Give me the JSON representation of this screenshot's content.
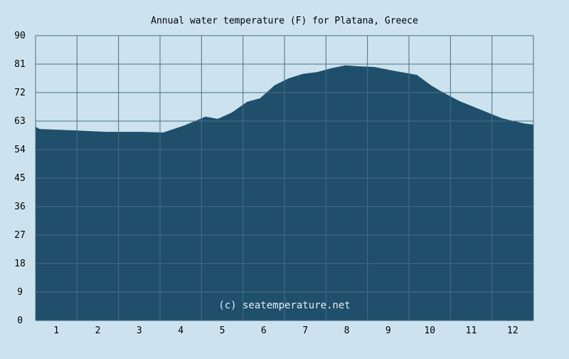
{
  "chart_data": {
    "type": "area",
    "title": "Annual water temperature (F) for Platana, Greece",
    "xlabel": "",
    "ylabel": "",
    "watermark": "(c) seatemperature.net",
    "ylim": [
      0,
      90
    ],
    "xlim": [
      0.5,
      12.5
    ],
    "yticks": [
      "0",
      "9",
      "18",
      "27",
      "36",
      "45",
      "54",
      "63",
      "72",
      "81",
      "90"
    ],
    "xticks": [
      "1",
      "2",
      "3",
      "4",
      "5",
      "6",
      "7",
      "8",
      "9",
      "10",
      "11",
      "12"
    ],
    "grid": true,
    "colors": {
      "background": "#cce3ef",
      "fill": "#1f4f6b",
      "grid": "#4a6c84"
    },
    "series": [
      {
        "name": "Water temperature (F)",
        "x": [
          0.5,
          0.6,
          1.36,
          2.21,
          3.07,
          3.58,
          4.1,
          4.6,
          4.89,
          5.23,
          5.6,
          5.91,
          6.26,
          6.6,
          6.94,
          7.29,
          7.63,
          7.97,
          8.31,
          8.66,
          9.17,
          9.69,
          10.03,
          10.26,
          10.72,
          11.23,
          11.74,
          12.26,
          12.5
        ],
        "y": [
          61.2,
          60.5,
          60.1,
          59.6,
          59.6,
          59.4,
          61.7,
          64.4,
          63.7,
          65.7,
          69.1,
          70.2,
          74.3,
          76.5,
          77.9,
          78.5,
          79.7,
          80.6,
          80.3,
          80.1,
          78.8,
          77.6,
          74.3,
          72.5,
          69.3,
          66.6,
          63.9,
          62.3,
          61.9
        ]
      }
    ]
  }
}
